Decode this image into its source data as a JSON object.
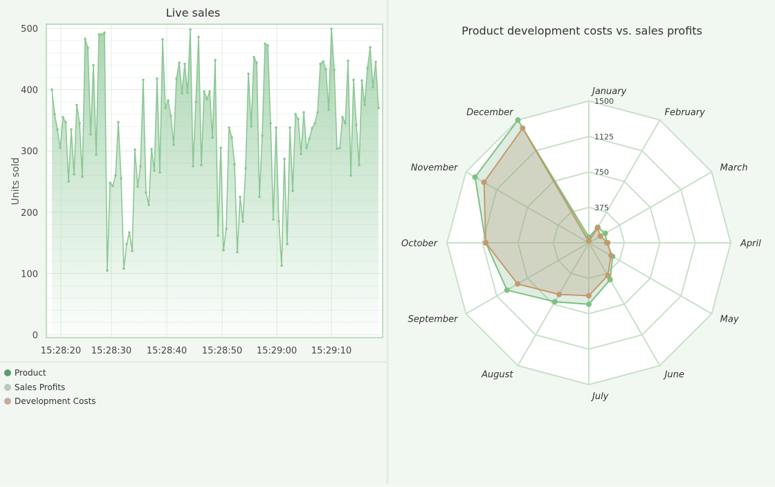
{
  "colors": {
    "product": "#5b9e68",
    "sales": "#7cc281",
    "costs": "#c49a6c",
    "grid": "#c9e0c9",
    "frame": "#c2dcc2"
  },
  "legend": {
    "items": [
      {
        "label": "Product",
        "color": "#5b9e68"
      },
      {
        "label": "Sales Profits",
        "color": "#b9c9bd"
      },
      {
        "label": "Development Costs",
        "color": "#c4aca0"
      }
    ]
  },
  "chart_data": [
    {
      "type": "area",
      "title": "Live sales",
      "ylabel": "Units sold",
      "xlabel": "",
      "ylim": [
        0,
        500
      ],
      "yticks": [
        0,
        100,
        200,
        300,
        400,
        500
      ],
      "xticks": [
        "15:28:20",
        "15:28:30",
        "15:28:40",
        "15:28:50",
        "15:29:00",
        "15:29:10"
      ],
      "series": [
        {
          "values": [
            400,
            360,
            335,
            305,
            355,
            347,
            250,
            335,
            262,
            375,
            345,
            258,
            483,
            468,
            327,
            440,
            294,
            490,
            490,
            493,
            105,
            248,
            243,
            260,
            347,
            255,
            108,
            148,
            167,
            137,
            302,
            242,
            275,
            416,
            232,
            212,
            303,
            268,
            418,
            265,
            482,
            370,
            382,
            357,
            310,
            418,
            444,
            394,
            442,
            395,
            498,
            275,
            380,
            486,
            277,
            397,
            385,
            397,
            322,
            448,
            162,
            305,
            138,
            173,
            338,
            322,
            278,
            135,
            225,
            185,
            272,
            426,
            340,
            453,
            444,
            225,
            325,
            475,
            472,
            345,
            188,
            338,
            185,
            113,
            287,
            148,
            338,
            235,
            360,
            352,
            295,
            363,
            305,
            320,
            337,
            345,
            363,
            442,
            446,
            433,
            367,
            499,
            432,
            304,
            305,
            355,
            345,
            447,
            260,
            416,
            343,
            277,
            415,
            375,
            435,
            469,
            404,
            445,
            370
          ]
        }
      ]
    },
    {
      "type": "radar",
      "title": "Product development costs vs. sales profits",
      "categories": [
        "January",
        "February",
        "March",
        "April",
        "May",
        "June",
        "July",
        "August",
        "September",
        "October",
        "November",
        "December"
      ],
      "rlim": [
        0,
        1500
      ],
      "rticks": [
        375,
        750,
        1125,
        1500
      ],
      "series": [
        {
          "values": [
            60,
            190,
            200,
            190,
            290,
            450,
            650,
            720,
            1000,
            1090,
            1390,
            1500
          ]
        },
        {
          "values": [
            20,
            180,
            140,
            200,
            270,
            400,
            560,
            630,
            870,
            1090,
            1280,
            1400
          ]
        }
      ]
    }
  ]
}
